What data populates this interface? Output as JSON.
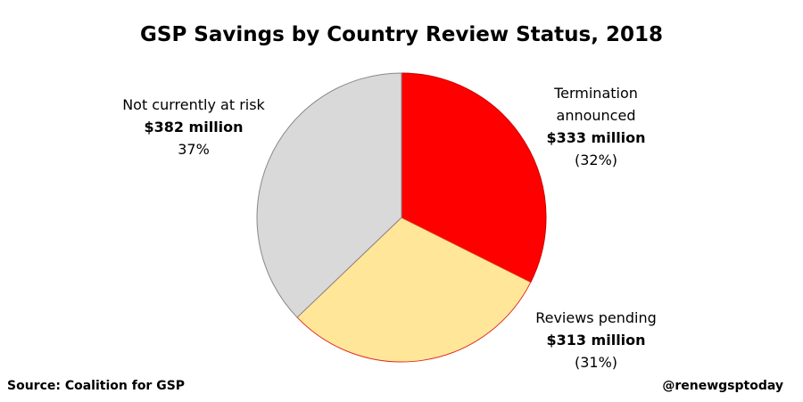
{
  "chart_data": {
    "type": "pie",
    "title": "GSP Savings by Country Review Status, 2018",
    "categories": [
      "Termination announced",
      "Reviews pending",
      "Not currently at risk"
    ],
    "values": [
      333,
      313,
      382
    ],
    "value_labels": [
      "$333 million",
      "$313 million",
      "$382 million"
    ],
    "percent_labels": [
      "(32%)",
      "(31%)",
      "37%"
    ],
    "colors": [
      "#ff0000",
      "#ffe699",
      "#d9d9d9"
    ],
    "source": "Source: Coalition for GSP",
    "credit": "@renewgsptoday"
  }
}
